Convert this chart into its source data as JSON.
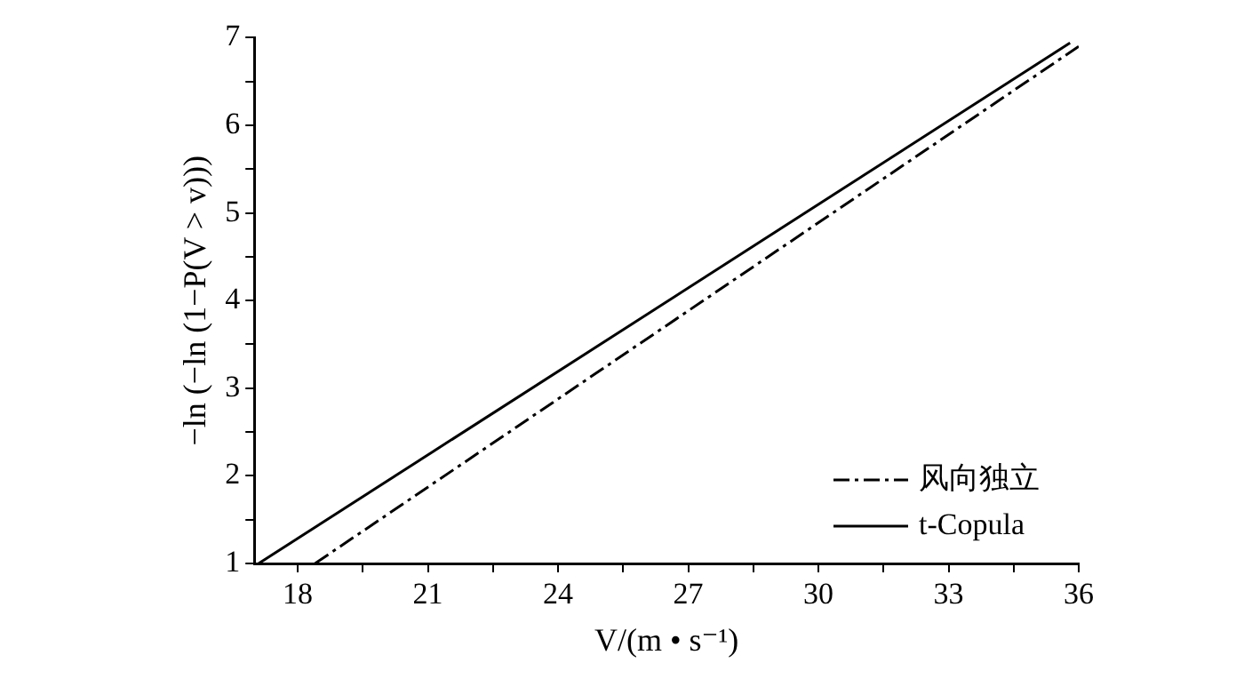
{
  "chart_data": {
    "type": "line",
    "xlabel": "V/(m • s⁻¹)",
    "ylabel": "−ln (−ln (1−P(V > v)))",
    "series": [
      {
        "name": "风向独立",
        "color": "#000000",
        "x": [
          18.4,
          36
        ],
        "values": [
          1,
          6.9
        ],
        "line_style": "dashdot"
      },
      {
        "name": "t-Copula",
        "color": "#000000",
        "x": [
          17.1,
          35.8
        ],
        "values": [
          1,
          6.94
        ],
        "line_style": "solid"
      }
    ],
    "xlim": [
      17,
      36
    ],
    "xticks": [
      18,
      {
        "value": 19.5,
        "label": null
      },
      21,
      {
        "value": 22.5,
        "label": null
      },
      24,
      {
        "value": 25.5,
        "label": null
      },
      27,
      {
        "value": 28.5,
        "label": null
      },
      30,
      {
        "value": 31.5,
        "label": null
      },
      33,
      {
        "value": 34.5,
        "label": null
      },
      36
    ],
    "ylim": [
      1,
      7
    ],
    "yticks": [
      1,
      {
        "value": 1.5,
        "label": null
      },
      2,
      {
        "value": 2.5,
        "label": null
      },
      3,
      {
        "value": 3.5,
        "label": null
      },
      4,
      {
        "value": 4.5,
        "label": null
      },
      5,
      {
        "value": 5.5,
        "label": null
      },
      6,
      {
        "value": 6.5,
        "label": null
      },
      7
    ],
    "grid": false,
    "legend": "bottom right",
    "marker": "none"
  }
}
